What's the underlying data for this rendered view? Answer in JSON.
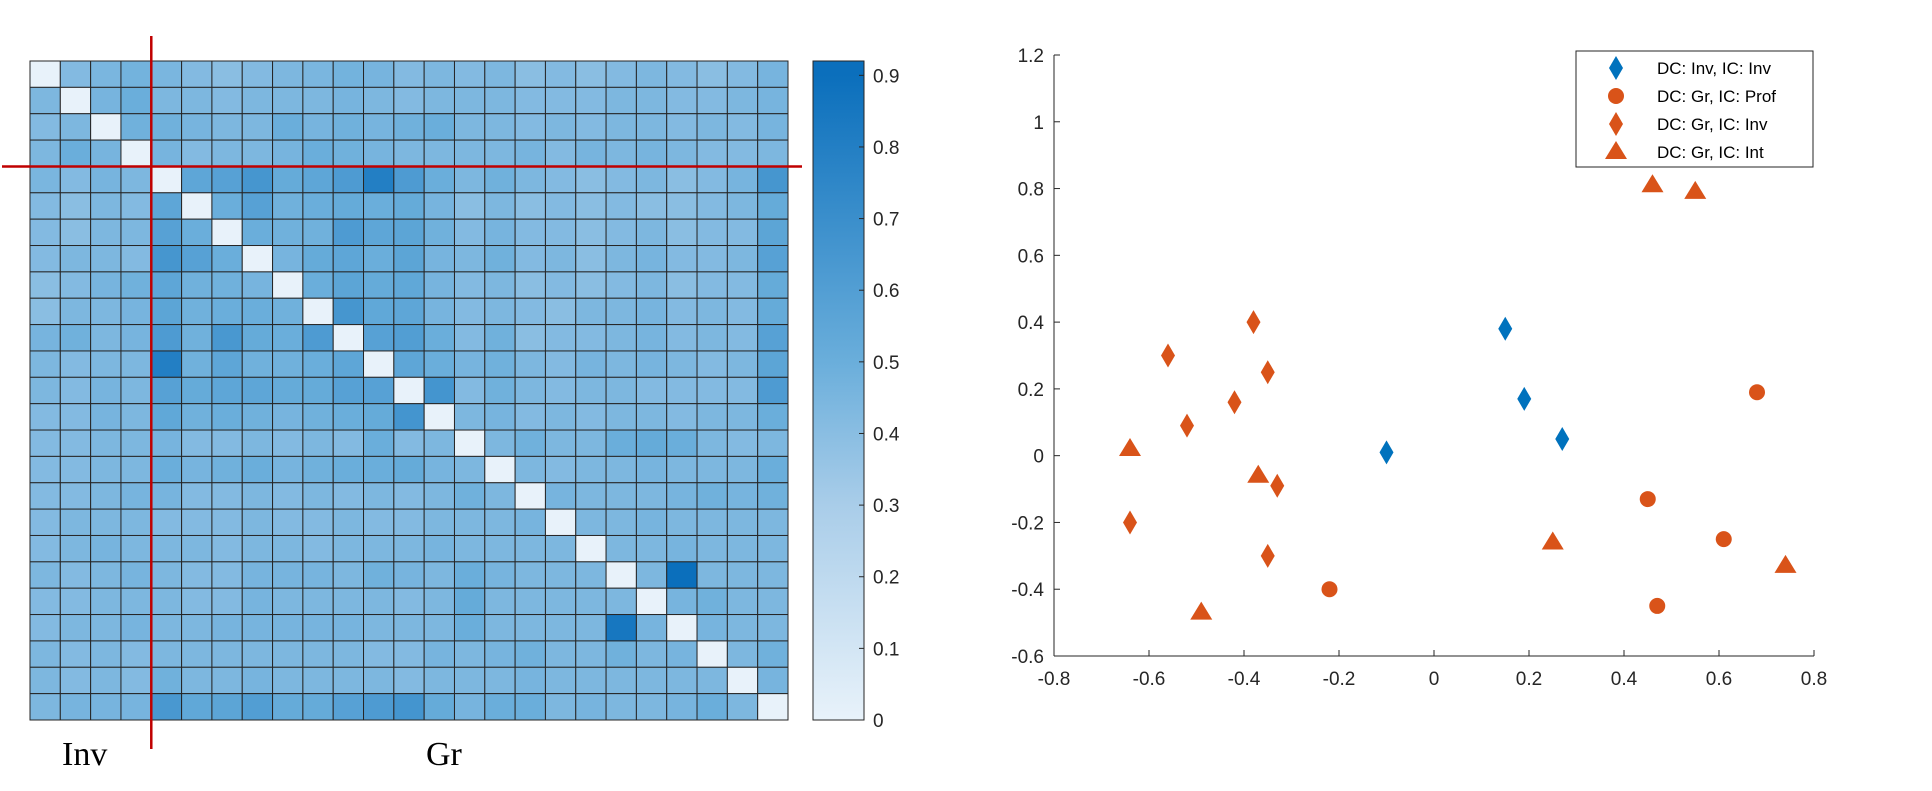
{
  "chart_data": [
    {
      "type": "heatmap",
      "colorbar": {
        "range": [
          0,
          0.92
        ],
        "ticks": [
          0,
          0.1,
          0.2,
          0.3,
          0.4,
          0.5,
          0.6,
          0.7,
          0.8,
          0.9
        ]
      },
      "colormap": [
        [
          0,
          "#e8f2fa"
        ],
        [
          0.3,
          "#a9cde9"
        ],
        [
          0.5,
          "#6aaedb"
        ],
        [
          0.9,
          "#0b6fbc"
        ]
      ],
      "group_labels": [
        "Inv",
        "Gr"
      ],
      "group_divider_after_index": 3,
      "divider_color": "#c00000",
      "grid": true,
      "values": [
        [
          0,
          0.42,
          0.45,
          0.47,
          0.45,
          0.42,
          0.4,
          0.42,
          0.44,
          0.45,
          0.47,
          0.46,
          0.42,
          0.44,
          0.42,
          0.44,
          0.4,
          0.42,
          0.4,
          0.42,
          0.44,
          0.42,
          0.4,
          0.42,
          0.46
        ],
        [
          0.44,
          0,
          0.46,
          0.5,
          0.44,
          0.44,
          0.42,
          0.44,
          0.44,
          0.44,
          0.46,
          0.44,
          0.42,
          0.44,
          0.44,
          0.44,
          0.42,
          0.42,
          0.42,
          0.44,
          0.44,
          0.42,
          0.42,
          0.44,
          0.46
        ],
        [
          0.42,
          0.44,
          0,
          0.48,
          0.48,
          0.46,
          0.44,
          0.44,
          0.5,
          0.46,
          0.48,
          0.46,
          0.48,
          0.5,
          0.44,
          0.44,
          0.42,
          0.44,
          0.42,
          0.44,
          0.44,
          0.42,
          0.44,
          0.42,
          0.46
        ],
        [
          0.44,
          0.5,
          0.46,
          0,
          0.46,
          0.42,
          0.44,
          0.44,
          0.46,
          0.5,
          0.48,
          0.46,
          0.44,
          0.44,
          0.44,
          0.44,
          0.46,
          0.42,
          0.46,
          0.44,
          0.46,
          0.44,
          0.42,
          0.42,
          0.44
        ],
        [
          0.45,
          0.42,
          0.46,
          0.44,
          0,
          0.55,
          0.58,
          0.65,
          0.52,
          0.55,
          0.62,
          0.8,
          0.62,
          0.5,
          0.44,
          0.48,
          0.44,
          0.42,
          0.4,
          0.42,
          0.44,
          0.4,
          0.42,
          0.46,
          0.65
        ],
        [
          0.42,
          0.4,
          0.44,
          0.42,
          0.55,
          0,
          0.5,
          0.58,
          0.48,
          0.5,
          0.52,
          0.5,
          0.52,
          0.46,
          0.4,
          0.44,
          0.4,
          0.42,
          0.4,
          0.42,
          0.4,
          0.4,
          0.42,
          0.44,
          0.52
        ],
        [
          0.42,
          0.4,
          0.44,
          0.44,
          0.58,
          0.5,
          0,
          0.5,
          0.48,
          0.48,
          0.62,
          0.55,
          0.56,
          0.48,
          0.42,
          0.46,
          0.42,
          0.42,
          0.4,
          0.42,
          0.44,
          0.4,
          0.42,
          0.42,
          0.56
        ],
        [
          0.42,
          0.44,
          0.44,
          0.42,
          0.65,
          0.58,
          0.5,
          0,
          0.46,
          0.52,
          0.55,
          0.5,
          0.56,
          0.46,
          0.44,
          0.48,
          0.42,
          0.44,
          0.4,
          0.44,
          0.46,
          0.42,
          0.42,
          0.44,
          0.58
        ],
        [
          0.4,
          0.42,
          0.46,
          0.48,
          0.55,
          0.48,
          0.48,
          0.46,
          0,
          0.5,
          0.56,
          0.52,
          0.54,
          0.46,
          0.42,
          0.44,
          0.4,
          0.42,
          0.4,
          0.42,
          0.44,
          0.4,
          0.42,
          0.42,
          0.52
        ],
        [
          0.4,
          0.44,
          0.44,
          0.46,
          0.56,
          0.48,
          0.5,
          0.5,
          0.48,
          0,
          0.65,
          0.54,
          0.55,
          0.46,
          0.42,
          0.44,
          0.42,
          0.4,
          0.44,
          0.44,
          0.46,
          0.42,
          0.44,
          0.42,
          0.52
        ],
        [
          0.46,
          0.48,
          0.44,
          0.46,
          0.62,
          0.48,
          0.64,
          0.52,
          0.5,
          0.62,
          0,
          0.58,
          0.6,
          0.5,
          0.42,
          0.48,
          0.4,
          0.42,
          0.42,
          0.44,
          0.46,
          0.42,
          0.44,
          0.42,
          0.58
        ],
        [
          0.44,
          0.42,
          0.44,
          0.44,
          0.8,
          0.48,
          0.55,
          0.48,
          0.48,
          0.5,
          0.55,
          0,
          0.55,
          0.5,
          0.46,
          0.48,
          0.44,
          0.42,
          0.46,
          0.44,
          0.46,
          0.44,
          0.42,
          0.44,
          0.56
        ],
        [
          0.44,
          0.42,
          0.46,
          0.44,
          0.58,
          0.52,
          0.55,
          0.55,
          0.52,
          0.52,
          0.58,
          0.58,
          0,
          0.66,
          0.42,
          0.48,
          0.44,
          0.42,
          0.44,
          0.44,
          0.42,
          0.42,
          0.42,
          0.42,
          0.62
        ],
        [
          0.42,
          0.42,
          0.46,
          0.44,
          0.54,
          0.48,
          0.5,
          0.48,
          0.46,
          0.48,
          0.5,
          0.52,
          0.66,
          0,
          0.44,
          0.46,
          0.42,
          0.44,
          0.42,
          0.44,
          0.44,
          0.42,
          0.44,
          0.44,
          0.5
        ],
        [
          0.42,
          0.42,
          0.44,
          0.44,
          0.46,
          0.42,
          0.42,
          0.44,
          0.42,
          0.44,
          0.42,
          0.5,
          0.42,
          0.44,
          0,
          0.44,
          0.48,
          0.44,
          0.44,
          0.5,
          0.52,
          0.5,
          0.44,
          0.42,
          0.44
        ],
        [
          0.42,
          0.42,
          0.44,
          0.44,
          0.5,
          0.46,
          0.48,
          0.5,
          0.46,
          0.48,
          0.5,
          0.5,
          0.52,
          0.46,
          0.44,
          0,
          0.44,
          0.42,
          0.44,
          0.44,
          0.46,
          0.44,
          0.44,
          0.44,
          0.5
        ],
        [
          0.42,
          0.42,
          0.44,
          0.46,
          0.46,
          0.42,
          0.42,
          0.44,
          0.42,
          0.44,
          0.42,
          0.44,
          0.42,
          0.44,
          0.48,
          0.44,
          0,
          0.46,
          0.44,
          0.44,
          0.44,
          0.46,
          0.48,
          0.46,
          0.48
        ],
        [
          0.42,
          0.44,
          0.44,
          0.44,
          0.42,
          0.42,
          0.42,
          0.44,
          0.42,
          0.42,
          0.44,
          0.42,
          0.42,
          0.44,
          0.44,
          0.44,
          0.46,
          0,
          0.44,
          0.44,
          0.46,
          0.44,
          0.44,
          0.44,
          0.44
        ],
        [
          0.42,
          0.44,
          0.46,
          0.44,
          0.44,
          0.44,
          0.42,
          0.44,
          0.44,
          0.42,
          0.44,
          0.44,
          0.44,
          0.46,
          0.44,
          0.44,
          0.44,
          0.44,
          0,
          0.44,
          0.44,
          0.46,
          0.44,
          0.44,
          0.44
        ],
        [
          0.44,
          0.42,
          0.44,
          0.46,
          0.44,
          0.42,
          0.42,
          0.46,
          0.46,
          0.46,
          0.44,
          0.48,
          0.46,
          0.44,
          0.5,
          0.46,
          0.44,
          0.44,
          0.44,
          0,
          0.44,
          0.9,
          0.44,
          0.44,
          0.44
        ],
        [
          0.42,
          0.42,
          0.44,
          0.44,
          0.44,
          0.42,
          0.42,
          0.46,
          0.44,
          0.44,
          0.44,
          0.44,
          0.42,
          0.44,
          0.52,
          0.44,
          0.44,
          0.44,
          0.44,
          0.44,
          0,
          0.46,
          0.48,
          0.44,
          0.44
        ],
        [
          0.42,
          0.44,
          0.44,
          0.46,
          0.44,
          0.44,
          0.46,
          0.46,
          0.46,
          0.46,
          0.46,
          0.44,
          0.44,
          0.44,
          0.5,
          0.44,
          0.44,
          0.44,
          0.44,
          0.85,
          0.46,
          0,
          0.46,
          0.44,
          0.44
        ],
        [
          0.44,
          0.42,
          0.44,
          0.42,
          0.44,
          0.44,
          0.44,
          0.44,
          0.44,
          0.44,
          0.44,
          0.42,
          0.42,
          0.46,
          0.44,
          0.46,
          0.48,
          0.44,
          0.44,
          0.48,
          0.44,
          0.46,
          0,
          0.44,
          0.48
        ],
        [
          0.44,
          0.42,
          0.44,
          0.42,
          0.48,
          0.44,
          0.44,
          0.46,
          0.44,
          0.44,
          0.44,
          0.44,
          0.42,
          0.44,
          0.44,
          0.44,
          0.46,
          0.44,
          0.44,
          0.44,
          0.44,
          0.44,
          0.44,
          0,
          0.46
        ],
        [
          0.44,
          0.46,
          0.46,
          0.46,
          0.64,
          0.54,
          0.56,
          0.6,
          0.52,
          0.52,
          0.58,
          0.62,
          0.66,
          0.52,
          0.46,
          0.5,
          0.5,
          0.44,
          0.46,
          0.44,
          0.44,
          0.46,
          0.5,
          0.44,
          0
        ]
      ]
    },
    {
      "type": "scatter",
      "xlim": [
        -0.8,
        0.8
      ],
      "ylim": [
        -0.6,
        1.2
      ],
      "xticks": [
        -0.8,
        -0.6,
        -0.4,
        -0.2,
        0,
        0.2,
        0.4,
        0.6,
        0.8
      ],
      "yticks": [
        -0.6,
        -0.4,
        -0.2,
        0,
        0.2,
        0.4,
        0.6,
        0.8,
        1,
        1.2
      ],
      "legend_position": "top-right",
      "grid": false,
      "series": [
        {
          "name": "DC: Inv, IC: Inv",
          "marker": "diamond",
          "color": "#0072BD",
          "points": [
            [
              0.15,
              0.38
            ],
            [
              0.19,
              0.17
            ],
            [
              0.27,
              0.05
            ],
            [
              -0.1,
              0.01
            ]
          ]
        },
        {
          "name": "DC: Gr, IC: Prof",
          "marker": "circle",
          "color": "#D95319",
          "points": [
            [
              0.68,
              0.19
            ],
            [
              0.45,
              -0.13
            ],
            [
              0.61,
              -0.25
            ],
            [
              0.47,
              -0.45
            ],
            [
              -0.22,
              -0.4
            ]
          ]
        },
        {
          "name": "DC: Gr, IC: Inv",
          "marker": "diamond",
          "color": "#D95319",
          "points": [
            [
              -0.38,
              0.4
            ],
            [
              -0.56,
              0.3
            ],
            [
              -0.35,
              0.25
            ],
            [
              -0.42,
              0.16
            ],
            [
              -0.52,
              0.09
            ],
            [
              -0.33,
              -0.09
            ],
            [
              -0.64,
              -0.2
            ],
            [
              -0.35,
              -0.3
            ]
          ]
        },
        {
          "name": "DC: Gr, IC: Int",
          "marker": "triangle",
          "color": "#D95319",
          "points": [
            [
              0.46,
              0.81
            ],
            [
              0.55,
              0.79
            ],
            [
              -0.64,
              0.02
            ],
            [
              -0.37,
              -0.06
            ],
            [
              0.25,
              -0.26
            ],
            [
              0.74,
              -0.33
            ],
            [
              -0.49,
              -0.47
            ]
          ]
        }
      ]
    }
  ]
}
